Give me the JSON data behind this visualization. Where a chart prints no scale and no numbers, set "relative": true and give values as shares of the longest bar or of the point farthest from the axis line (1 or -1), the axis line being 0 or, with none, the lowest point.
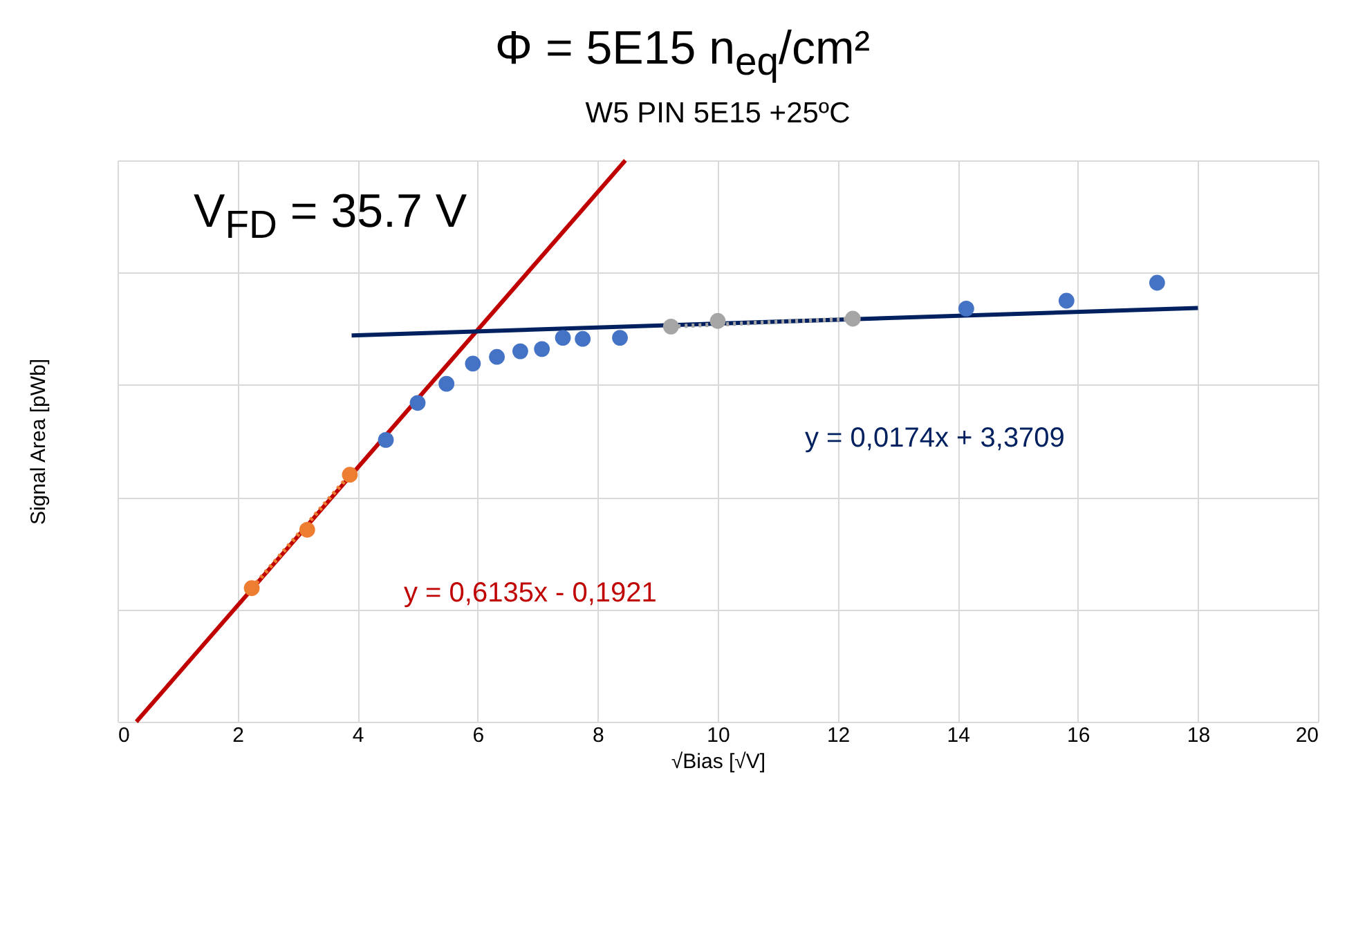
{
  "chart_data": {
    "type": "scatter",
    "title": "Φ = 5E15 n$_{eq}$/cm²",
    "subtitle": "W5 PIN 5E15 +25ºC",
    "xlabel": "√Bias [√V]",
    "ylabel": "Signal Area  [pWb]",
    "relative": true,
    "xlim": [
      0,
      20
    ],
    "xticks": [
      0,
      2,
      4,
      6,
      8,
      10,
      12,
      14,
      16,
      18,
      20
    ],
    "grid": true,
    "annotations": [
      "V$_{FD}$ = 35.7 V",
      "y = 0,6135x - 0,1921",
      "y = 0,0174x + 3,3709"
    ],
    "series": [
      {
        "type": "line",
        "marker": "none",
        "color": "#c00000",
        "x": [
          0.313,
          8.46
        ],
        "values": [
          0,
          1
        ]
      },
      {
        "type": "line",
        "marker": "none",
        "color": "#002060",
        "x": [
          3.9,
          18
        ],
        "values": [
          0.688,
          0.737
        ]
      },
      {
        "type": "line",
        "marker": "none",
        "line_style": "dotted",
        "color": "#ed7d31",
        "x": [
          2.236,
          3.87
        ],
        "values": [
          0.238,
          0.44
        ]
      },
      {
        "type": "line",
        "marker": "none",
        "line_style": "dotted",
        "color": "#a5a5a5",
        "x": [
          9.22,
          12.25
        ],
        "values": [
          0.704,
          0.718
        ]
      },
      {
        "marker": "circle",
        "color": "#ed7d31",
        "x": [
          2.236,
          3.16,
          3.87
        ],
        "values": [
          0.238,
          0.342,
          0.44
        ]
      },
      {
        "marker": "circle",
        "color": "#4472c4",
        "x": [
          4.47,
          5.0,
          5.48,
          5.92,
          6.32,
          6.71,
          7.07,
          7.42,
          7.75,
          8.37
        ],
        "values": [
          0.502,
          0.568,
          0.602,
          0.638,
          0.65,
          0.66,
          0.664,
          0.684,
          0.682,
          0.684
        ]
      },
      {
        "marker": "circle",
        "color": "#a5a5a5",
        "x": [
          9.22,
          10.0,
          12.25
        ],
        "values": [
          0.704,
          0.714,
          0.718
        ]
      },
      {
        "marker": "circle",
        "color": "#4472c4",
        "x": [
          14.14,
          15.81,
          17.32
        ],
        "values": [
          0.736,
          0.75,
          0.782
        ]
      }
    ]
  }
}
